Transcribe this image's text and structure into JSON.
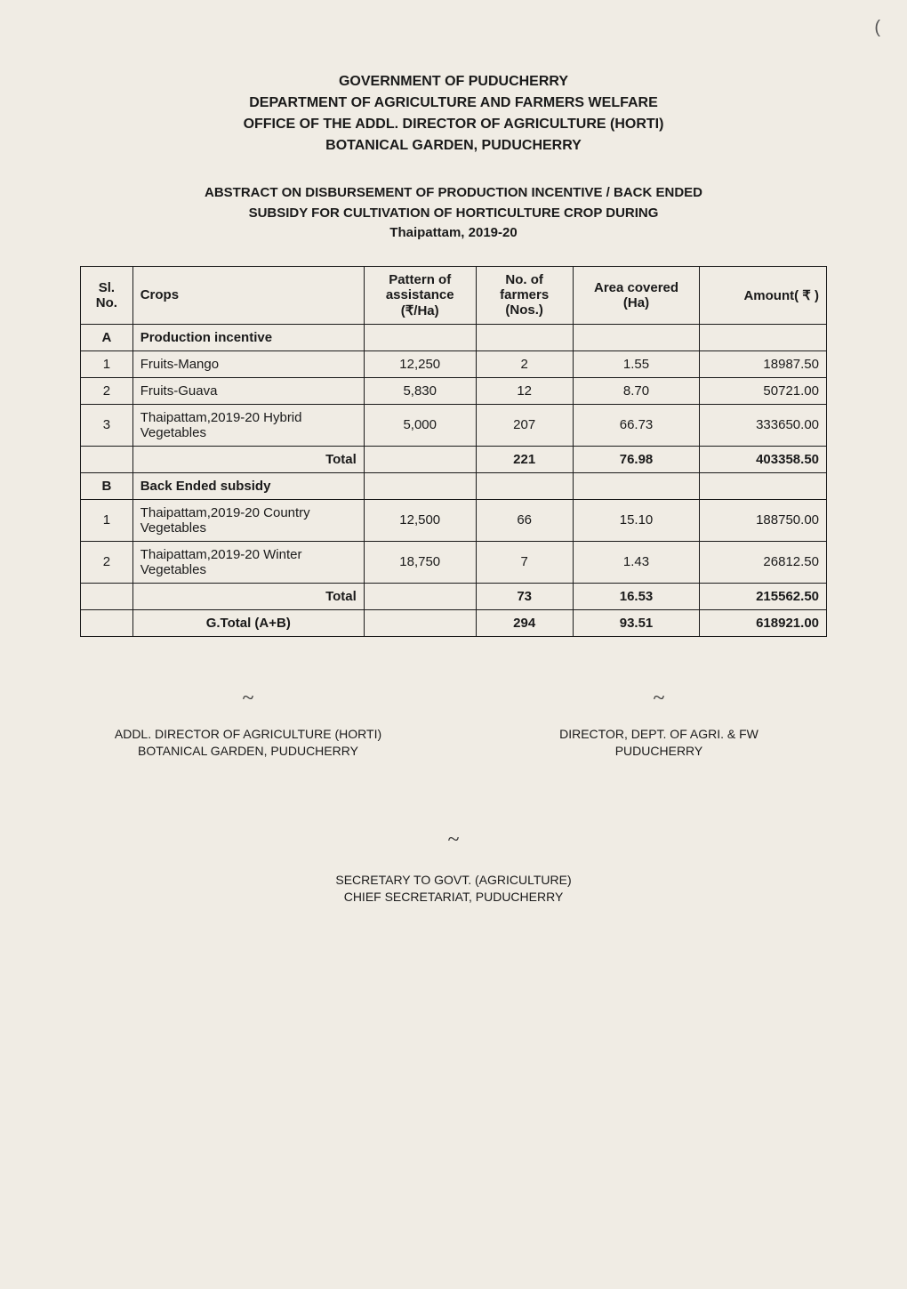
{
  "header": {
    "line1": "GOVERNMENT OF PUDUCHERRY",
    "line2": "DEPARTMENT OF AGRICULTURE AND FARMERS WELFARE",
    "line3": "OFFICE OF THE ADDL. DIRECTOR OF AGRICULTURE (HORTI)",
    "line4": "BOTANICAL GARDEN, PUDUCHERRY"
  },
  "subtitle": {
    "line1": "ABSTRACT ON DISBURSEMENT OF PRODUCTION INCENTIVE / BACK ENDED",
    "line2": "SUBSIDY FOR CULTIVATION OF HORTICULTURE CROP DURING",
    "line3": "Thaipattam, 2019-20"
  },
  "table": {
    "columns": {
      "sl": "Sl. No.",
      "crops": "Crops",
      "pattern": "Pattern of assistance (₹/Ha)",
      "farmers": "No. of farmers (Nos.)",
      "area": "Area covered (Ha)",
      "amount": "Amount( ₹ )"
    },
    "sectionA": {
      "label": "A",
      "title": "Production incentive",
      "rows": [
        {
          "sl": "1",
          "crops": "Fruits-Mango",
          "pattern": "12,250",
          "farmers": "2",
          "area": "1.55",
          "amount": "18987.50"
        },
        {
          "sl": "2",
          "crops": "Fruits-Guava",
          "pattern": "5,830",
          "farmers": "12",
          "area": "8.70",
          "amount": "50721.00"
        },
        {
          "sl": "3",
          "crops": "Thaipattam,2019-20 Hybrid  Vegetables",
          "pattern": "5,000",
          "farmers": "207",
          "area": "66.73",
          "amount": "333650.00"
        }
      ],
      "total": {
        "label": "Total",
        "farmers": "221",
        "area": "76.98",
        "amount": "403358.50"
      }
    },
    "sectionB": {
      "label": "B",
      "title": "Back Ended subsidy",
      "rows": [
        {
          "sl": "1",
          "crops": "Thaipattam,2019-20 Country Vegetables",
          "pattern": "12,500",
          "farmers": "66",
          "area": "15.10",
          "amount": "188750.00"
        },
        {
          "sl": "2",
          "crops": "Thaipattam,2019-20 Winter Vegetables",
          "pattern": "18,750",
          "farmers": "7",
          "area": "1.43",
          "amount": "26812.50"
        }
      ],
      "total": {
        "label": "Total",
        "farmers": "73",
        "area": "16.53",
        "amount": "215562.50"
      }
    },
    "grandTotal": {
      "label": "G.Total (A+B)",
      "farmers": "294",
      "area": "93.51",
      "amount": "618921.00"
    }
  },
  "signatures": {
    "left": {
      "line1": "ADDL. DIRECTOR OF AGRICULTURE (HORTI)",
      "line2": "BOTANICAL GARDEN, PUDUCHERRY"
    },
    "right": {
      "line1": "DIRECTOR, DEPT. OF AGRI. & FW",
      "line2": "PUDUCHERRY"
    },
    "bottom": {
      "line1": "SECRETARY TO GOVT. (AGRICULTURE)",
      "line2": "CHIEF SECRETARIAT, PUDUCHERRY"
    }
  },
  "styling": {
    "background_color": "#f0ece4",
    "text_color": "#1a1a1a",
    "border_color": "#1a1a1a",
    "header_fontsize": 16,
    "body_fontsize": 15,
    "sig_fontsize": 14
  }
}
